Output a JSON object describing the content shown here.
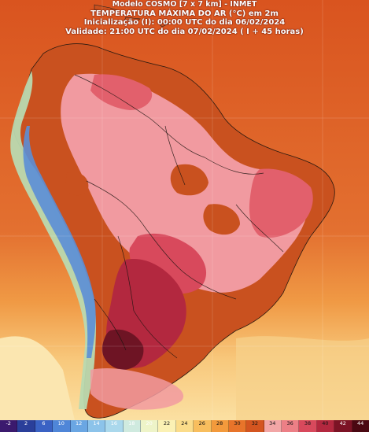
{
  "header": {
    "line1": "Modelo COSMO [7 x 7 km] - INMET",
    "line2": "TEMPERATURA MÁXIMA DO AR (°C) em 2m",
    "line3": "Inicialização (I): 00:00 UTC do dia 06/02/2024",
    "line4": "Validade: 21:00 UTC do dia 07/02/2024 ( I + 45 horas)"
  },
  "legend": {
    "items": [
      {
        "label": "-2",
        "color": "#3b1a6e"
      },
      {
        "label": "2",
        "color": "#2a3f9a"
      },
      {
        "label": "6",
        "color": "#3a62c4"
      },
      {
        "label": "10",
        "color": "#4f86d8"
      },
      {
        "label": "12",
        "color": "#6aa6e3"
      },
      {
        "label": "14",
        "color": "#8cc3ea"
      },
      {
        "label": "16",
        "color": "#aad8ec"
      },
      {
        "label": "18",
        "color": "#cfeadf"
      },
      {
        "label": "20",
        "color": "#eef4c8"
      },
      {
        "label": "22",
        "color": "#fbf1b4"
      },
      {
        "label": "24",
        "color": "#fbdc8a"
      },
      {
        "label": "26",
        "color": "#f8be5e"
      },
      {
        "label": "28",
        "color": "#f39a3c"
      },
      {
        "label": "30",
        "color": "#e8742a"
      },
      {
        "label": "32",
        "color": "#d45520"
      },
      {
        "label": "34",
        "color": "#f2a6a6"
      },
      {
        "label": "36",
        "color": "#ec7f86"
      },
      {
        "label": "38",
        "color": "#d8495c"
      },
      {
        "label": "40",
        "color": "#b3283f"
      },
      {
        "label": "42",
        "color": "#7c1325"
      },
      {
        "label": "44",
        "color": "#4a0812"
      }
    ]
  },
  "colors": {
    "ocean_warm": "#e0662a",
    "ocean_south": "#f6c47a",
    "land_hot": "#c9511f",
    "land_pink": "#f19aa0",
    "land_red": "#e2606c",
    "land_darkred": "#6e1424",
    "andes_blue": "#5b8ed6",
    "andes_green": "#b9d9b0"
  }
}
